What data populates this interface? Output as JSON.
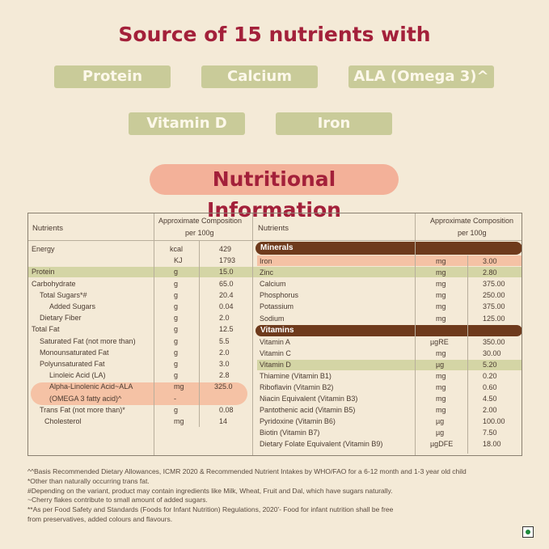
{
  "header": "Source of 15 nutrients with",
  "pills": [
    "Protein",
    "Calcium",
    "ALA (Omega 3)^",
    "Vitamin D",
    "Iron"
  ],
  "section_title": "Nutritional Information",
  "left": {
    "h_nutrients": "Nutrients",
    "h_comp_1": "Approximate Composition",
    "h_comp_2": "per 100g",
    "rows": [
      {
        "n": "Energy",
        "u": "kcal",
        "v": "429"
      },
      {
        "n": "",
        "u": "KJ",
        "v": "1793"
      },
      {
        "n": "Protein",
        "u": "g",
        "v": "15.0"
      },
      {
        "n": "Carbohydrate",
        "u": "g",
        "v": "65.0"
      },
      {
        "n": "Total Sugars*#",
        "u": "g",
        "v": "20.4"
      },
      {
        "n": "Added Sugars",
        "u": "g",
        "v": "0.04"
      },
      {
        "n": "Dietary Fiber",
        "u": "g",
        "v": "2.0"
      },
      {
        "n": "Total Fat",
        "u": "g",
        "v": "12.5"
      },
      {
        "n": "Saturated Fat (not more than)",
        "u": "g",
        "v": "5.5"
      },
      {
        "n": "Monounsaturated Fat",
        "u": "g",
        "v": "2.0"
      },
      {
        "n": "Polyunsaturated Fat",
        "u": "g",
        "v": "3.0"
      },
      {
        "n": "Linoleic Acid (LA)",
        "u": "g",
        "v": "2.8"
      },
      {
        "n": "Alpha-Linolenic Acid~ALA",
        "u": "mg",
        "v": "325.0"
      },
      {
        "n": "(OMEGA 3 fatty acid)^",
        "u": "-",
        "v": ""
      },
      {
        "n": "Trans Fat (not more than)*",
        "u": "g",
        "v": "0.08"
      },
      {
        "n": "Cholesterol",
        "u": "mg",
        "v": "14"
      }
    ]
  },
  "right": {
    "h_nutrients": "Nutrients",
    "h_comp_1": "Approximate Composition",
    "h_comp_2": "per 100g",
    "minerals_label": "Minerals",
    "vitamins_label": "Vitamins",
    "minerals": [
      {
        "n": "Iron",
        "u": "mg",
        "v": "3.00"
      },
      {
        "n": "Zinc",
        "u": "mg",
        "v": "2.80"
      },
      {
        "n": "Calcium",
        "u": "mg",
        "v": "375.00"
      },
      {
        "n": "Phosphorus",
        "u": "mg",
        "v": "250.00"
      },
      {
        "n": "Potassium",
        "u": "mg",
        "v": "375.00"
      },
      {
        "n": "Sodium",
        "u": "mg",
        "v": "125.00"
      }
    ],
    "vitamins": [
      {
        "n": "Vitamin A",
        "u": "µgRE",
        "v": "350.00"
      },
      {
        "n": "Vitamin C",
        "u": "mg",
        "v": "30.00"
      },
      {
        "n": "Vitamin D",
        "u": "µg",
        "v": "5.20"
      },
      {
        "n": "Thiamine (Vitamin B1)",
        "u": "mg",
        "v": "0.20"
      },
      {
        "n": "Riboflavin (Vitamin B2)",
        "u": "mg",
        "v": "0.60"
      },
      {
        "n": "Niacin Equivalent (Vitamin B3)",
        "u": "mg",
        "v": "4.50"
      },
      {
        "n": "Pantothenic acid (Vitamin B5)",
        "u": "mg",
        "v": "2.00"
      },
      {
        "n": "Pyridoxine (Vitamin B6)",
        "u": "µg",
        "v": "100.00"
      },
      {
        "n": "Biotin (Vitamin B7)",
        "u": "µg",
        "v": "7.50"
      },
      {
        "n": "Dietary Folate Equivalent (Vitamin B9)",
        "u": "µgDFE",
        "v": "18.00"
      }
    ]
  },
  "footnotes": [
    "^^Basis Recommended Dietary Allowances, ICMR 2020 & Recommended Nutrient Intakes by WHO/FAO for a 6-12 month and 1-3  year  old  child",
    "*Other than naturally occurring trans fat.",
    "#Depending on the variant, product may contain ingredients like Milk, Wheat, Fruit and Dal, which have sugars naturally.",
    "~Cherry flakes contribute to small amount of added sugars.",
    "**As per Food Safety and Standards (Foods for Infant Nutrition) Regulations, 2020'- Food for infant nutrition shall be free",
    " from preservatives, added colours and flavours."
  ],
  "colors": {
    "title_red": "#a3203a",
    "pill_green": "#c9cb99",
    "peach": "#f3b199",
    "brown": "#6e3a1c"
  },
  "icons": [
    "veg-mark-icon"
  ]
}
